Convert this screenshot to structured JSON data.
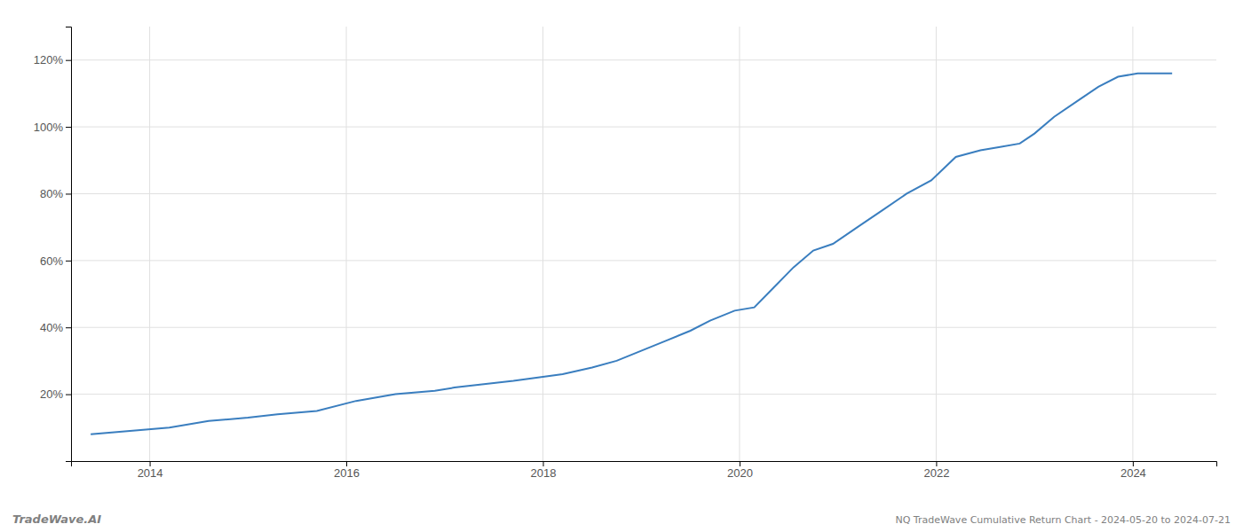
{
  "chart_data": {
    "type": "line",
    "title": "NQ TradeWave Cumulative Return Chart - 2024-05-20 to 2024-07-21",
    "annotations": [
      "TradeWave.AI"
    ],
    "x": [
      2013.4,
      2013.8,
      2014.2,
      2014.6,
      2015.0,
      2015.3,
      2015.7,
      2016.1,
      2016.5,
      2016.9,
      2017.1,
      2017.4,
      2017.7,
      2017.95,
      2018.2,
      2018.5,
      2018.75,
      2019.0,
      2019.25,
      2019.5,
      2019.7,
      2019.95,
      2020.15,
      2020.35,
      2020.55,
      2020.75,
      2020.95,
      2021.2,
      2021.45,
      2021.7,
      2021.95,
      2022.2,
      2022.45,
      2022.65,
      2022.85,
      2023.0,
      2023.2,
      2023.45,
      2023.65,
      2023.85,
      2024.05,
      2024.4
    ],
    "values": [
      8,
      9,
      10,
      12,
      13,
      14,
      15,
      18,
      20,
      21,
      22,
      23,
      24,
      25,
      26,
      28,
      30,
      33,
      36,
      39,
      42,
      45,
      46,
      52,
      58,
      63,
      65,
      70,
      75,
      80,
      84,
      91,
      93,
      94,
      95,
      98,
      103,
      108,
      112,
      115,
      116,
      116
    ],
    "color": "#3a7ebf",
    "xlim": [
      2013.2,
      2024.85
    ],
    "xticks": [
      2014,
      2016,
      2018,
      2020,
      2022,
      2024
    ],
    "ylim": [
      0,
      130
    ],
    "yticks": [
      {
        "value": 20,
        "label": "20%"
      },
      {
        "value": 40,
        "label": "40%"
      },
      {
        "value": 60,
        "label": "60%"
      },
      {
        "value": 80,
        "label": "80%"
      },
      {
        "value": 100,
        "label": "100%"
      },
      {
        "value": 120,
        "label": "120%"
      }
    ],
    "grid": true
  }
}
